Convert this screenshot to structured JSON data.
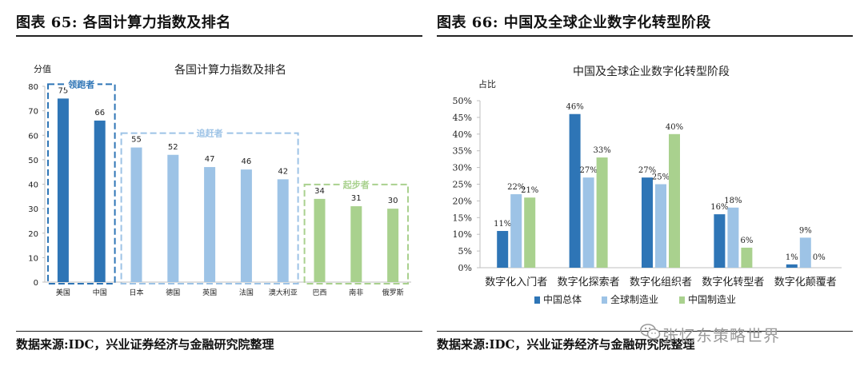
{
  "left_panel": {
    "heading": "图表 65:  各国计算力指数及排名",
    "source": "数据来源:IDC，兴业证券经济与金融研究院整理"
  },
  "right_panel": {
    "heading": "图表 66:  中国及全球企业数字化转型阶段",
    "source": "数据来源:IDC，兴业证券经济与金融研究院整理"
  },
  "watermark": {
    "text": "张忆东策略世界",
    "icon": "wechat-icon"
  },
  "colors": {
    "dark_blue": "#2E75B6",
    "light_blue": "#9DC3E6",
    "green": "#A9D18E",
    "axis": "#BFBFBF"
  },
  "chart_data": [
    {
      "type": "bar",
      "title": "各国计算力指数及排名",
      "ylabel": "分值",
      "ylim": [
        0,
        80
      ],
      "yticks": [
        0,
        10,
        20,
        30,
        40,
        50,
        60,
        70,
        80
      ],
      "categories": [
        "美国",
        "中国",
        "日本",
        "德国",
        "英国",
        "法国",
        "澳大利亚",
        "巴西",
        "南非",
        "俄罗斯"
      ],
      "values": [
        75,
        66,
        55,
        52,
        47,
        46,
        42,
        34,
        31,
        30
      ],
      "groups": [
        {
          "label": "领跑者",
          "start": 0,
          "end": 1,
          "color": "#2E75B6"
        },
        {
          "label": "追赶者",
          "start": 2,
          "end": 6,
          "color": "#9DC3E6"
        },
        {
          "label": "起步者",
          "start": 7,
          "end": 9,
          "color": "#A9D18E"
        }
      ]
    },
    {
      "type": "bar",
      "title": "中国及全球企业数字化转型阶段",
      "ylabel": "占比",
      "ylim": [
        0,
        50
      ],
      "yticks": [
        "0%",
        "5%",
        "10%",
        "15%",
        "20%",
        "25%",
        "30%",
        "35%",
        "40%",
        "45%",
        "50%"
      ],
      "categories": [
        "数字化入门者",
        "数字化探索者",
        "数字化组织者",
        "数字化转型者",
        "数字化颠覆者"
      ],
      "series": [
        {
          "name": "中国总体",
          "values": [
            11,
            46,
            27,
            16,
            1
          ],
          "labels": [
            "11%",
            "46%",
            "27%",
            "16%",
            "1%"
          ],
          "color": "#2E75B6"
        },
        {
          "name": "全球制造业",
          "values": [
            22,
            27,
            25,
            18,
            9
          ],
          "labels": [
            "22%",
            "27%",
            "25%",
            "18%",
            "9%"
          ],
          "color": "#9DC3E6"
        },
        {
          "name": "中国制造业",
          "values": [
            21,
            33,
            40,
            6,
            0
          ],
          "labels": [
            "21%",
            "33%",
            "40%",
            "6%",
            "0%"
          ],
          "color": "#A9D18E"
        }
      ]
    }
  ]
}
